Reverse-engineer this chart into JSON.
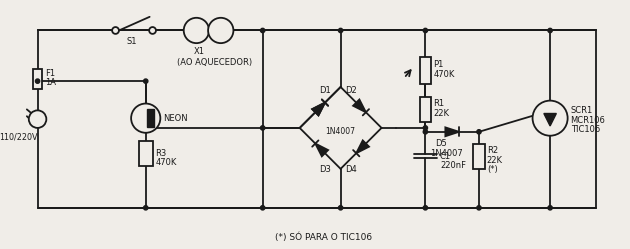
{
  "bg": "#f0ede8",
  "lc": "#1a1a1a",
  "tc": "#1a1a1a",
  "footnote": "(*) SÓ PARA O TIC106",
  "label_x1": "X1",
  "label_x1_sub": "(AO AQUECEDOR)",
  "label_s1": "S1",
  "label_f1": "F1",
  "label_f1_val": "1A",
  "label_plug": "110/220V",
  "label_neon": "NEON",
  "label_r3": "R3",
  "label_r3_val": "470K",
  "label_d1": "D1",
  "label_d2": "D2",
  "label_d3": "D3",
  "label_d4": "D4",
  "label_d_val": "1N4007",
  "label_p1": "P1",
  "label_p1_val": "470K",
  "label_r1": "R1",
  "label_r1_val": "22K",
  "label_d5": "D5",
  "label_d5_val": "1N4007",
  "label_c1": "C1",
  "label_c1_val": "220nF",
  "label_r2": "R2",
  "label_r2_val": "22K",
  "label_r2_note": "(*)",
  "label_scr": "SCR1",
  "label_scr2": "MCR106",
  "label_scr3": "TIC106"
}
